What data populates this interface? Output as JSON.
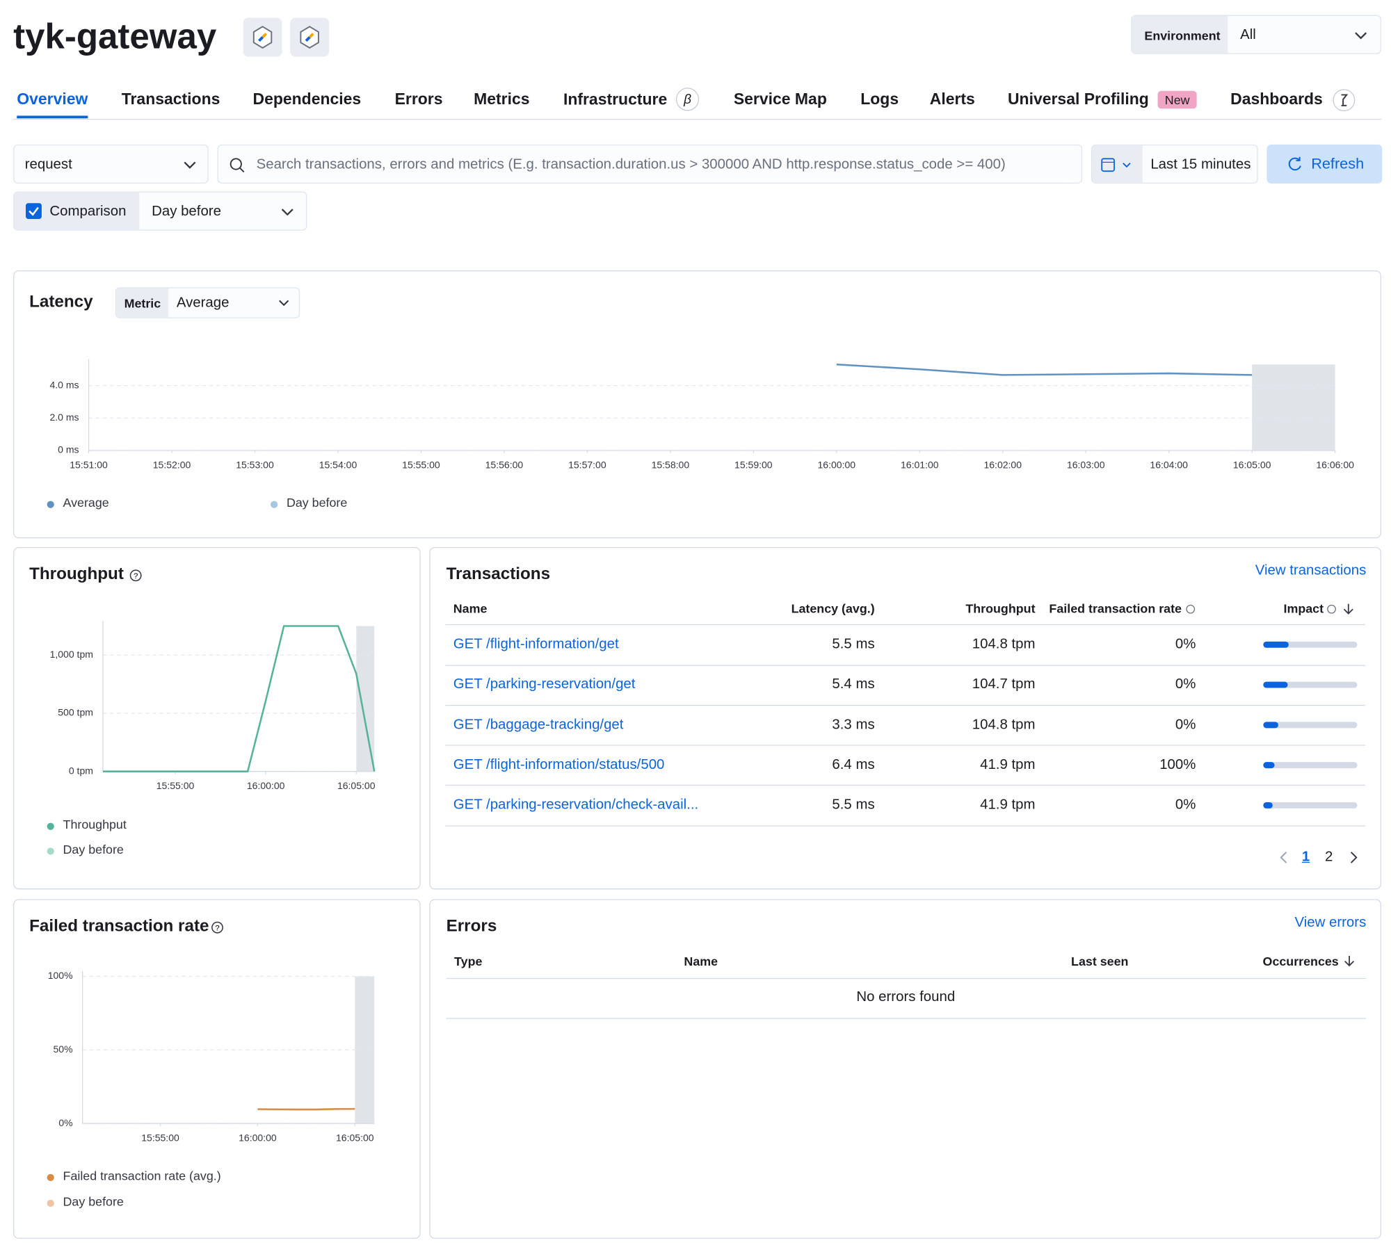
{
  "header": {
    "title": "tyk-gateway",
    "environment_label": "Environment",
    "environment_value": "All"
  },
  "tabs": [
    {
      "label": "Overview"
    },
    {
      "label": "Transactions"
    },
    {
      "label": "Dependencies"
    },
    {
      "label": "Errors"
    },
    {
      "label": "Metrics"
    },
    {
      "label": "Infrastructure",
      "badge": "β"
    },
    {
      "label": "Service Map"
    },
    {
      "label": "Logs"
    },
    {
      "label": "Alerts"
    },
    {
      "label": "Universal Profiling",
      "badge": "New"
    },
    {
      "label": "Dashboards"
    }
  ],
  "filters": {
    "transaction_type": "request",
    "search_placeholder": "Search transactions, errors and metrics (E.g. transaction.duration.us > 300000 AND http.response.status_code >= 400)",
    "time_range": "Last 15 minutes",
    "refresh": "Refresh",
    "comparison_label": "Comparison",
    "comparison_value": "Day before"
  },
  "latency_controls": {
    "metric_label": "Metric",
    "metric_value": "Average"
  },
  "chart_data": [
    {
      "type": "line",
      "title": "Latency",
      "x": [
        "16:00:00",
        "16:01:00",
        "16:02:00",
        "16:03:00",
        "16:04:00",
        "16:05:00"
      ],
      "series": [
        {
          "name": "Average",
          "color": "#6092c0",
          "values": [
            5.3,
            5.0,
            4.65,
            4.7,
            4.75,
            4.65
          ]
        },
        {
          "name": "Day before",
          "color": "#a8c5e2",
          "values": [
            null,
            null,
            null,
            null,
            null,
            null
          ]
        }
      ],
      "xlim": [
        "15:51:00",
        "16:06:00"
      ],
      "xticks": [
        "15:51:00",
        "15:52:00",
        "15:53:00",
        "15:54:00",
        "15:55:00",
        "15:56:00",
        "15:57:00",
        "15:58:00",
        "15:59:00",
        "16:00:00",
        "16:01:00",
        "16:02:00",
        "16:03:00",
        "16:04:00",
        "16:05:00",
        "16:06:00"
      ],
      "ylim": [
        0,
        5.3
      ],
      "yticks": [
        {
          "value": 0,
          "label": "0 ms"
        },
        {
          "value": 2,
          "label": "2.0 ms"
        },
        {
          "value": 4,
          "label": "4.0 ms"
        }
      ],
      "grid": true,
      "shaded_range": [
        "16:05:00",
        "16:06:00"
      ]
    },
    {
      "type": "line",
      "title": "Throughput",
      "x": [
        "15:51:00",
        "15:52:00",
        "15:53:00",
        "15:54:00",
        "15:55:00",
        "15:56:00",
        "15:57:00",
        "15:58:00",
        "15:59:00",
        "16:00:00",
        "16:01:00",
        "16:02:00",
        "16:03:00",
        "16:04:00",
        "16:05:00",
        "16:06:00"
      ],
      "series": [
        {
          "name": "Throughput",
          "color": "#54b399",
          "values": [
            0,
            0,
            0,
            0,
            0,
            0,
            0,
            0,
            0,
            610,
            1250,
            1250,
            1250,
            1250,
            840,
            0
          ]
        },
        {
          "name": "Day before",
          "color": "#a6dbc9",
          "values": [
            null,
            null,
            null,
            null,
            null,
            null,
            null,
            null,
            null,
            null,
            null,
            null,
            null,
            null,
            null,
            null
          ]
        }
      ],
      "xlim": [
        "15:51:00",
        "16:06:00"
      ],
      "xticks": [
        "15:55:00",
        "16:00:00",
        "16:05:00"
      ],
      "ylim": [
        0,
        1250
      ],
      "yticks": [
        {
          "value": 0,
          "label": "0 tpm"
        },
        {
          "value": 500,
          "label": "500 tpm"
        },
        {
          "value": 1000,
          "label": "1,000 tpm"
        }
      ],
      "grid": true,
      "shaded_range": [
        "16:05:00",
        "16:06:00"
      ]
    },
    {
      "type": "line",
      "title": "Failed transaction rate",
      "x": [
        "16:00:00",
        "16:01:00",
        "16:02:00",
        "16:03:00",
        "16:04:00",
        "16:05:00"
      ],
      "series": [
        {
          "name": "Failed transaction rate (avg.)",
          "color": "#da8b45",
          "values": [
            9.7,
            9.6,
            9.5,
            9.5,
            9.8,
            9.9
          ]
        },
        {
          "name": "Day before",
          "color": "#eec5a2",
          "values": [
            null,
            null,
            null,
            null,
            null,
            null
          ]
        }
      ],
      "xlim": [
        "15:51:00",
        "16:06:00"
      ],
      "xticks": [
        "15:55:00",
        "16:00:00",
        "16:05:00"
      ],
      "ylim": [
        0,
        100
      ],
      "yticks": [
        {
          "value": 0,
          "label": "0%"
        },
        {
          "value": 50,
          "label": "50%"
        },
        {
          "value": 100,
          "label": "100%"
        }
      ],
      "grid": true,
      "shaded_range": [
        "16:05:00",
        "16:06:00"
      ]
    }
  ],
  "transactions": {
    "title": "Transactions",
    "link": "View transactions",
    "columns": [
      "Name",
      "Latency (avg.)",
      "Throughput",
      "Failed transaction rate",
      "Impact"
    ],
    "rows": [
      {
        "name": "GET /flight-information/get",
        "latency": "5.5 ms",
        "throughput": "104.8 tpm",
        "failed_rate": "0%",
        "impact": 27
      },
      {
        "name": "GET /parking-reservation/get",
        "latency": "5.4 ms",
        "throughput": "104.7 tpm",
        "failed_rate": "0%",
        "impact": 26
      },
      {
        "name": "GET /baggage-tracking/get",
        "latency": "3.3 ms",
        "throughput": "104.8 tpm",
        "failed_rate": "0%",
        "impact": 16
      },
      {
        "name": "GET /flight-information/status/500",
        "latency": "6.4 ms",
        "throughput": "41.9 tpm",
        "failed_rate": "100%",
        "impact": 12
      },
      {
        "name": "GET /parking-reservation/check-avail...",
        "latency": "5.5 ms",
        "throughput": "41.9 tpm",
        "failed_rate": "0%",
        "impact": 10
      }
    ],
    "pages": [
      1,
      2
    ]
  },
  "errors": {
    "title": "Errors",
    "link": "View errors",
    "columns": [
      "Type",
      "Name",
      "Last seen",
      "Occurrences"
    ],
    "empty": "No errors found"
  }
}
